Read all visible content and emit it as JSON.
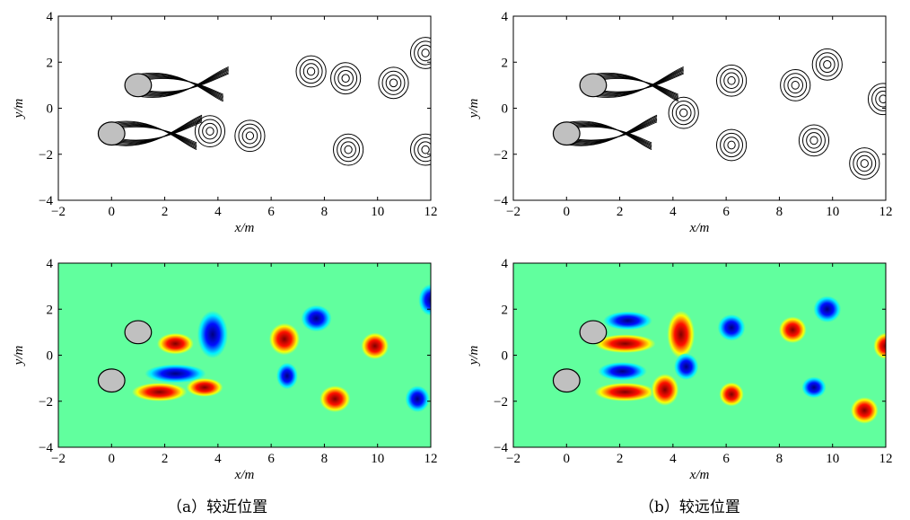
{
  "chart_data": [
    {
      "type": "contour",
      "panel": "a-top",
      "xlabel": "x/m",
      "ylabel": "y/m",
      "xlim": [
        -2,
        12
      ],
      "ylim": [
        -4,
        4
      ],
      "xticks": [
        "−2",
        "0",
        "2",
        "4",
        "6",
        "8",
        "10",
        "12"
      ],
      "yticks": [
        "4",
        "2",
        "0",
        "−2",
        "−4"
      ],
      "cylinders": [
        {
          "x": 1.0,
          "y": 1.0
        },
        {
          "x": 0.0,
          "y": -1.1
        }
      ],
      "vortices": [
        {
          "x": 7.5,
          "y": 1.6,
          "sign": 1
        },
        {
          "x": 8.8,
          "y": 1.3,
          "sign": -1
        },
        {
          "x": 10.6,
          "y": 1.1,
          "sign": 1
        },
        {
          "x": 11.8,
          "y": 2.4,
          "sign": -1
        },
        {
          "x": 5.2,
          "y": -1.2,
          "sign": -1
        },
        {
          "x": 8.9,
          "y": -1.8,
          "sign": 1
        },
        {
          "x": 11.8,
          "y": -1.8,
          "sign": -1
        },
        {
          "x": 3.7,
          "y": -1.0,
          "sign": 1
        }
      ]
    },
    {
      "type": "contour",
      "panel": "b-top",
      "xlabel": "x/m",
      "ylabel": "y/m",
      "xlim": [
        -2,
        12
      ],
      "ylim": [
        -4,
        4
      ],
      "xticks": [
        "−2",
        "0",
        "2",
        "4",
        "6",
        "8",
        "10",
        "12"
      ],
      "yticks": [
        "4",
        "2",
        "0",
        "−2",
        "−4"
      ],
      "cylinders": [
        {
          "x": 1.0,
          "y": 1.0
        },
        {
          "x": 0.0,
          "y": -1.1
        }
      ],
      "vortices": [
        {
          "x": 6.2,
          "y": 1.2,
          "sign": -1
        },
        {
          "x": 8.6,
          "y": 1.0,
          "sign": 1
        },
        {
          "x": 9.8,
          "y": 1.9,
          "sign": -1
        },
        {
          "x": 11.9,
          "y": 0.4,
          "sign": 1
        },
        {
          "x": 6.2,
          "y": -1.6,
          "sign": 1
        },
        {
          "x": 9.3,
          "y": -1.4,
          "sign": -1
        },
        {
          "x": 11.2,
          "y": -2.4,
          "sign": 1
        },
        {
          "x": 4.4,
          "y": -0.2,
          "sign": 1
        }
      ]
    },
    {
      "type": "heatmap",
      "panel": "a-bottom",
      "xlabel": "x/m",
      "ylabel": "y/m",
      "xlim": [
        -2,
        12
      ],
      "ylim": [
        -4,
        4
      ],
      "xticks": [
        "−2",
        "0",
        "2",
        "4",
        "6",
        "8",
        "10",
        "12"
      ],
      "yticks": [
        "4",
        "2",
        "0",
        "−2",
        "−4"
      ],
      "cylinders": [
        {
          "x": 1.0,
          "y": 1.0
        },
        {
          "x": 0.0,
          "y": -1.1
        }
      ],
      "blobs": [
        {
          "x": 2.4,
          "y": 0.5,
          "rx": 0.6,
          "ry": 0.4,
          "sign": 1
        },
        {
          "x": 3.8,
          "y": 0.9,
          "rx": 0.5,
          "ry": 0.9,
          "sign": -1
        },
        {
          "x": 1.8,
          "y": -1.6,
          "rx": 0.9,
          "ry": 0.35,
          "sign": 1
        },
        {
          "x": 2.4,
          "y": -0.8,
          "rx": 1.0,
          "ry": 0.35,
          "sign": -1
        },
        {
          "x": 3.5,
          "y": -1.4,
          "rx": 0.6,
          "ry": 0.35,
          "sign": 1
        },
        {
          "x": 6.5,
          "y": 0.7,
          "rx": 0.5,
          "ry": 0.6,
          "sign": 1
        },
        {
          "x": 7.7,
          "y": 1.6,
          "rx": 0.5,
          "ry": 0.5,
          "sign": -1
        },
        {
          "x": 9.9,
          "y": 0.4,
          "rx": 0.45,
          "ry": 0.5,
          "sign": 1
        },
        {
          "x": 6.6,
          "y": -0.9,
          "rx": 0.35,
          "ry": 0.5,
          "sign": -1
        },
        {
          "x": 8.4,
          "y": -1.9,
          "rx": 0.5,
          "ry": 0.5,
          "sign": 1
        },
        {
          "x": 11.5,
          "y": -1.9,
          "rx": 0.4,
          "ry": 0.5,
          "sign": -1
        },
        {
          "x": 12.0,
          "y": 2.4,
          "rx": 0.4,
          "ry": 0.6,
          "sign": -1
        }
      ]
    },
    {
      "type": "heatmap",
      "panel": "b-bottom",
      "xlabel": "x/m",
      "ylabel": "y/m",
      "xlim": [
        -2,
        12
      ],
      "ylim": [
        -4,
        4
      ],
      "xticks": [
        "−2",
        "0",
        "2",
        "4",
        "6",
        "8",
        "10",
        "12"
      ],
      "yticks": [
        "4",
        "2",
        "0",
        "−2",
        "−4"
      ],
      "cylinders": [
        {
          "x": 1.0,
          "y": 1.0
        },
        {
          "x": 0.0,
          "y": -1.1
        }
      ],
      "blobs": [
        {
          "x": 2.3,
          "y": 1.5,
          "rx": 0.8,
          "ry": 0.35,
          "sign": -1
        },
        {
          "x": 2.2,
          "y": 0.5,
          "rx": 1.0,
          "ry": 0.35,
          "sign": 1
        },
        {
          "x": 4.3,
          "y": 0.9,
          "rx": 0.45,
          "ry": 0.9,
          "sign": 1
        },
        {
          "x": 2.1,
          "y": -0.7,
          "rx": 0.8,
          "ry": 0.35,
          "sign": -1
        },
        {
          "x": 2.2,
          "y": -1.6,
          "rx": 1.0,
          "ry": 0.35,
          "sign": 1
        },
        {
          "x": 3.7,
          "y": -1.5,
          "rx": 0.45,
          "ry": 0.6,
          "sign": 1
        },
        {
          "x": 4.5,
          "y": -0.5,
          "rx": 0.4,
          "ry": 0.5,
          "sign": -1
        },
        {
          "x": 6.2,
          "y": 1.2,
          "rx": 0.45,
          "ry": 0.5,
          "sign": -1
        },
        {
          "x": 6.2,
          "y": -1.7,
          "rx": 0.4,
          "ry": 0.45,
          "sign": 1
        },
        {
          "x": 8.5,
          "y": 1.1,
          "rx": 0.45,
          "ry": 0.5,
          "sign": 1
        },
        {
          "x": 9.8,
          "y": 2.0,
          "rx": 0.45,
          "ry": 0.5,
          "sign": -1
        },
        {
          "x": 9.3,
          "y": -1.4,
          "rx": 0.4,
          "ry": 0.4,
          "sign": -1
        },
        {
          "x": 11.2,
          "y": -2.4,
          "rx": 0.45,
          "ry": 0.5,
          "sign": 1
        },
        {
          "x": 12.0,
          "y": 0.4,
          "rx": 0.4,
          "ry": 0.5,
          "sign": 1
        }
      ]
    }
  ],
  "captions": {
    "a": "（a）较近位置",
    "b": "（b）较远位置"
  }
}
